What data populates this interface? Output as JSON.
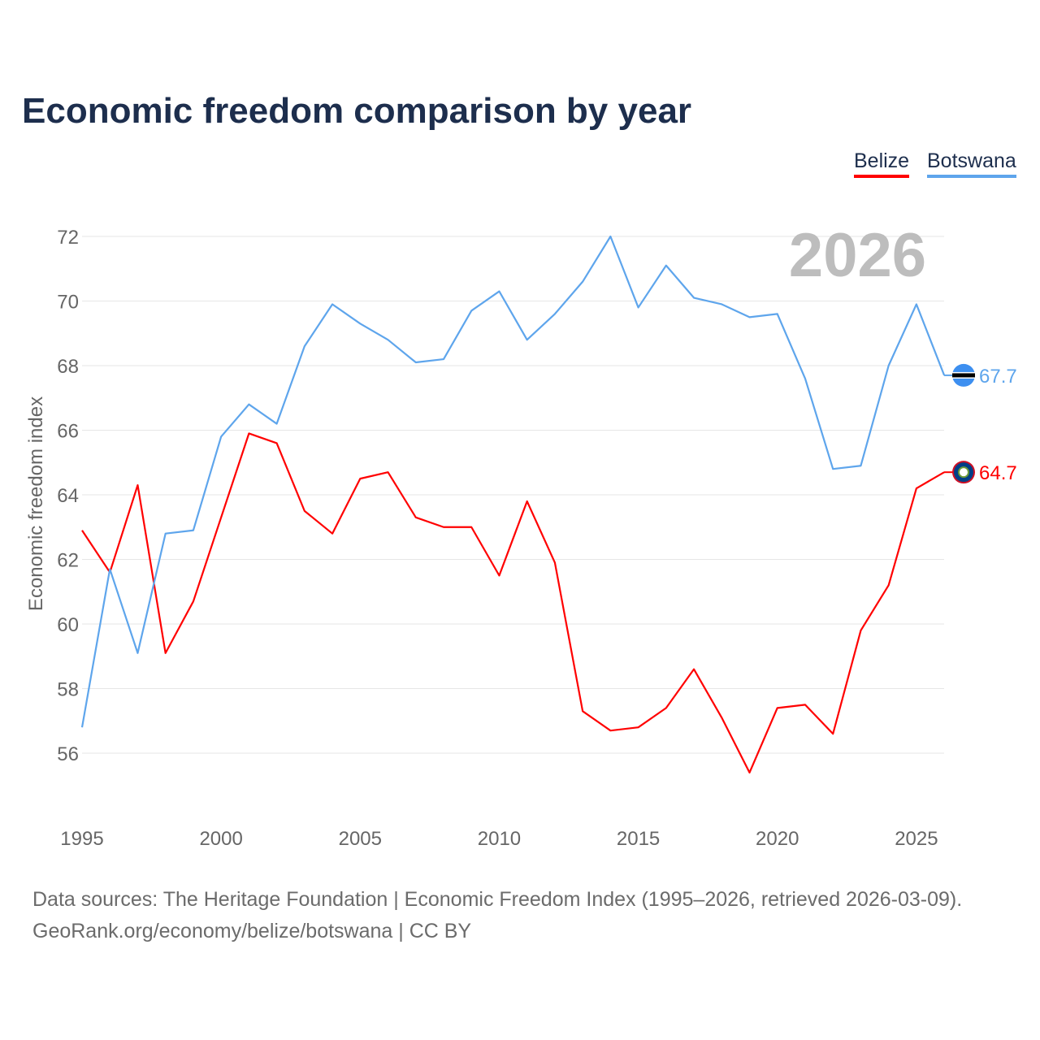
{
  "title": "Economic freedom comparison by year",
  "source_line1": "Data sources: The Heritage Foundation | Economic Freedom Index (1995–2026, retrieved 2026-03-09).",
  "source_line2": "GeoRank.org/economy/belize/botswana | CC BY",
  "chart_data": {
    "type": "line",
    "title": "Economic freedom comparison by year",
    "xlabel": "",
    "ylabel": "Economic freedom index",
    "watermark_year": "2026",
    "xlim": [
      1995,
      2026
    ],
    "ylim": [
      54,
      72.5
    ],
    "xticks": [
      1995,
      2000,
      2005,
      2010,
      2015,
      2020,
      2025
    ],
    "yticks": [
      56,
      58,
      60,
      62,
      64,
      66,
      68,
      70,
      72
    ],
    "grid": true,
    "legend_position": "top-right",
    "x": [
      1995,
      1996,
      1997,
      1998,
      1999,
      2000,
      2001,
      2002,
      2003,
      2004,
      2005,
      2006,
      2007,
      2008,
      2009,
      2010,
      2011,
      2012,
      2013,
      2014,
      2015,
      2016,
      2017,
      2018,
      2019,
      2020,
      2021,
      2022,
      2023,
      2024,
      2025,
      2026
    ],
    "series": [
      {
        "name": "Belize",
        "color": "#ff0000",
        "end_label": "64.7",
        "values": [
          62.9,
          61.6,
          64.3,
          59.1,
          60.7,
          63.3,
          65.9,
          65.6,
          63.5,
          62.8,
          64.5,
          64.7,
          63.3,
          63.0,
          63.0,
          61.5,
          63.8,
          61.9,
          57.3,
          56.7,
          56.8,
          57.4,
          58.6,
          57.1,
          55.4,
          57.4,
          57.5,
          56.6,
          59.8,
          61.2,
          64.2,
          64.7
        ]
      },
      {
        "name": "Botswana",
        "color": "#5ea5ec",
        "end_label": "67.7",
        "values": [
          56.8,
          61.7,
          59.1,
          62.8,
          62.9,
          65.8,
          66.8,
          66.2,
          68.6,
          69.9,
          69.3,
          68.8,
          68.1,
          68.2,
          69.7,
          70.3,
          68.8,
          69.6,
          70.6,
          72.0,
          69.8,
          71.1,
          70.1,
          69.9,
          69.5,
          69.6,
          67.6,
          64.8,
          64.9,
          68.0,
          69.9,
          67.7
        ]
      }
    ]
  }
}
